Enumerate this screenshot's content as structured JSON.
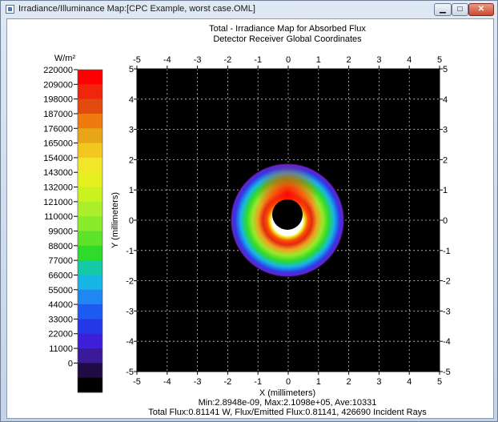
{
  "window": {
    "title": "Irradiance/Illuminance Map:[CPC Example, worst case.OML]",
    "controls": [
      "minimize",
      "maximize",
      "close"
    ]
  },
  "plot": {
    "title_line1": "Total - Irradiance Map for Absorbed Flux",
    "title_line2": "Detector Receiver    Global Coordinates",
    "x_label": "X (millimeters)",
    "y_label": "Y (millimeters)",
    "stats_line1": "Min:2.8948e-09, Max:2.1098e+05, Ave:10331",
    "stats_line2": "Total Flux:0.81141 W, Flux/Emitted Flux:0.81141, 426690 Incident Rays"
  },
  "chart_data": {
    "type": "heatmap",
    "xlim": [
      -5,
      5
    ],
    "ylim": [
      -5,
      5
    ],
    "x_ticks": [
      "-5",
      "-4",
      "-3",
      "-2",
      "-1",
      "0",
      "1",
      "2",
      "3",
      "4",
      "5"
    ],
    "y_ticks": [
      "5",
      "4",
      "3",
      "2",
      "1",
      "0",
      "-1",
      "-2",
      "-3",
      "-4",
      "-5"
    ],
    "grid": true,
    "colorbar": {
      "unit": "W/m²",
      "labels": [
        "220000",
        "209000",
        "198000",
        "187000",
        "176000",
        "165000",
        "154000",
        "143000",
        "132000",
        "121000",
        "110000",
        "99000",
        "88000",
        "77000",
        "66000",
        "55000",
        "44000",
        "33000",
        "22000",
        "11000",
        "0"
      ],
      "colors": [
        "#ff0000",
        "#f0250b",
        "#e24a10",
        "#ef7a10",
        "#e8a617",
        "#f2c720",
        "#f2e62a",
        "#e6f020",
        "#c9f21f",
        "#aaef2a",
        "#8aeb2a",
        "#5fe22a",
        "#2edb2a",
        "#14c9a3",
        "#17b5e6",
        "#1f87f2",
        "#1d5af2",
        "#2438e8",
        "#3c1fd6",
        "#3a1a99",
        "#200b45",
        "#000000"
      ]
    },
    "features": [
      {
        "shape": "annulus",
        "center": [
          0.0,
          0.2
        ],
        "inner_radius": 0.5,
        "outer_radius": 1.8,
        "peak_region": "upper inner rim",
        "peak_value": 210980
      }
    ]
  }
}
